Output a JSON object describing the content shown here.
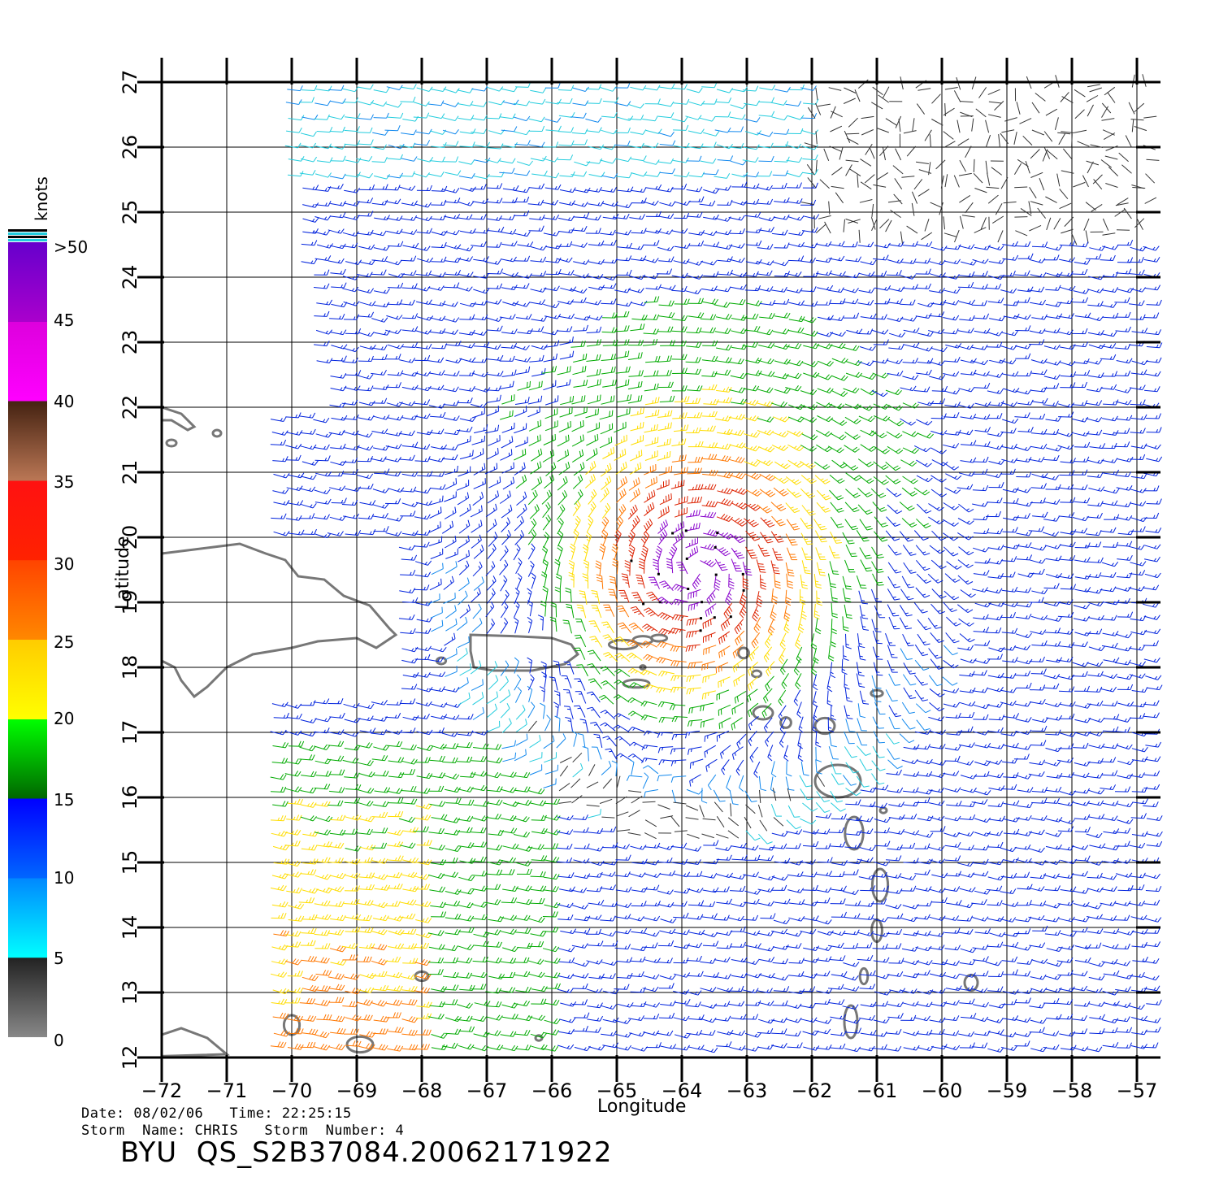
{
  "map": {
    "lon_range": [
      -72,
      -56.6
    ],
    "lat_range": [
      12,
      27
    ],
    "lon_ticks": [
      -72,
      -71,
      -70,
      -69,
      -68,
      -67,
      -66,
      -65,
      -64,
      -63,
      -62,
      -61,
      -60,
      -59,
      -58,
      -57
    ],
    "lat_ticks": [
      12,
      13,
      14,
      15,
      16,
      17,
      18,
      19,
      20,
      21,
      22,
      23,
      24,
      25,
      26,
      27
    ],
    "xlabel": "Longitude",
    "ylabel": "Latitude",
    "grid": true,
    "storm_center": {
      "lon": -63.8,
      "lat": 19.5
    },
    "land_color": "#777777"
  },
  "colorbar": {
    "unit": "knots",
    "labels": [
      ">50",
      "45",
      "40",
      "35",
      "30",
      "25",
      "20",
      "15",
      "10",
      "5",
      "0"
    ],
    "stops": [
      {
        "min": 0,
        "max": 5,
        "colors": [
          "#888888",
          "#222222"
        ]
      },
      {
        "min": 5,
        "max": 10,
        "colors": [
          "#00ffff",
          "#0088ff"
        ]
      },
      {
        "min": 10,
        "max": 15,
        "colors": [
          "#0066ff",
          "#0000ff"
        ]
      },
      {
        "min": 15,
        "max": 20,
        "colors": [
          "#006600",
          "#00ff00"
        ]
      },
      {
        "min": 20,
        "max": 25,
        "colors": [
          "#ffff00",
          "#ffcc00"
        ]
      },
      {
        "min": 25,
        "max": 30,
        "colors": [
          "#ff8800",
          "#ff4400"
        ]
      },
      {
        "min": 30,
        "max": 35,
        "colors": [
          "#ff2200",
          "#ff1111"
        ]
      },
      {
        "min": 35,
        "max": 40,
        "colors": [
          "#bb7755",
          "#442211"
        ]
      },
      {
        "min": 40,
        "max": 45,
        "colors": [
          "#ff00ff",
          "#dd00dd"
        ]
      },
      {
        "min": 45,
        "max": 50,
        "colors": [
          "#aa00cc",
          "#6600cc"
        ]
      }
    ],
    "wind_colors": {
      "calm": "#333333",
      "cyan": "#22ccdd",
      "light_blue": "#1188ee",
      "blue": "#0022dd",
      "green": "#00aa00",
      "yellow": "#ffdd00",
      "orange": "#ff7700",
      "red": "#dd2200",
      "purple": "#8800cc"
    }
  },
  "info": {
    "line1": "Date: 08/02/06   Time: 22:25:15",
    "line2": "Storm  Name: CHRIS   Storm  Number: 4",
    "title": "BYU  QS_S2B37084.20062171922"
  }
}
